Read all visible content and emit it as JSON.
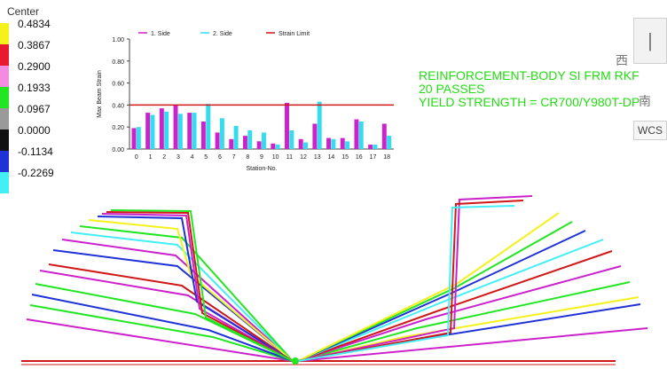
{
  "legend": {
    "title": "Center",
    "items": [
      {
        "value": "0.4834",
        "color": "#f4f21a"
      },
      {
        "value": "0.3867",
        "color": "#e8192c"
      },
      {
        "value": "0.2900",
        "color": "#f38be0"
      },
      {
        "value": "0.1933",
        "color": "#22e622"
      },
      {
        "value": "0.0967",
        "color": "#9a9a9a"
      },
      {
        "value": "0.0000",
        "color": "#111111"
      },
      {
        "value": "-0.1134",
        "color": "#1e32d6"
      },
      {
        "value": "-0.2269",
        "color": "#43eef5"
      }
    ]
  },
  "annotation": {
    "line1": "REINFORCEMENT-BODY SI FRM RKF",
    "line2": "20 PASSES",
    "line3": "YIELD STRENGTH = CR700/Y980T-DP"
  },
  "side_panel": {
    "glyph1": "西",
    "glyph2": "南",
    "wcs_label": "WCS"
  },
  "chart_data": {
    "type": "bar",
    "categories": [
      "0",
      "1",
      "2",
      "3",
      "4",
      "5",
      "6",
      "7",
      "8",
      "9",
      "10",
      "11",
      "12",
      "13",
      "14",
      "15",
      "16",
      "17",
      "18"
    ],
    "series": [
      {
        "name": "1. Side",
        "color": "#cc22cc",
        "values": [
          0.19,
          0.33,
          0.37,
          0.4,
          0.33,
          0.25,
          0.15,
          0.09,
          0.12,
          0.07,
          0.05,
          0.42,
          0.09,
          0.23,
          0.1,
          0.1,
          0.27,
          0.04,
          0.23
        ]
      },
      {
        "name": "2. Side",
        "color": "#33ddee",
        "values": [
          0.2,
          0.31,
          0.34,
          0.32,
          0.33,
          0.41,
          0.28,
          0.21,
          0.17,
          0.15,
          0.04,
          0.17,
          0.06,
          0.43,
          0.09,
          0.07,
          0.25,
          0.04,
          0.12
        ]
      }
    ],
    "limit": {
      "name": "Strain Limit",
      "value": 0.4,
      "color": "#d01818"
    },
    "xlabel": "Station-No.",
    "ylabel": "Max Beam Strain",
    "ylim": [
      0,
      1.0
    ],
    "yticks": [
      "0.00",
      "0.20",
      "0.40",
      "0.60",
      "0.80",
      "1.00"
    ],
    "legend_position": "top"
  }
}
